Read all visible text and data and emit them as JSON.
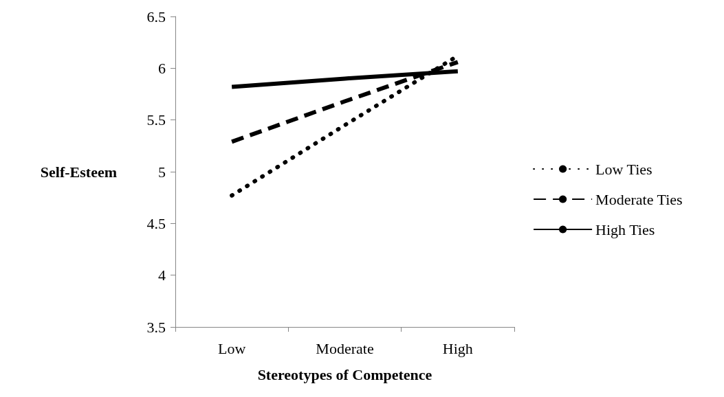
{
  "chart_data": {
    "type": "line",
    "xlabel": "Stereotypes of Competence",
    "ylabel": "Self-Esteem",
    "categories": [
      "Low",
      "Moderate",
      "High"
    ],
    "series": [
      {
        "name": "Low Ties",
        "color": "#000000",
        "line_style": "dotted",
        "values": [
          4.77,
          5.45,
          6.12
        ]
      },
      {
        "name": "Moderate Ties",
        "color": "#000000",
        "line_style": "dashed",
        "values": [
          5.29,
          5.68,
          6.06
        ]
      },
      {
        "name": "High Ties",
        "color": "#000000",
        "line_style": "solid",
        "values": [
          5.82,
          5.9,
          5.97
        ]
      }
    ],
    "ylim": [
      3.5,
      6.5
    ],
    "yticks": [
      3.5,
      4,
      4.5,
      5,
      5.5,
      6,
      6.5
    ],
    "grid": false,
    "legend": "right",
    "marker": "none"
  }
}
